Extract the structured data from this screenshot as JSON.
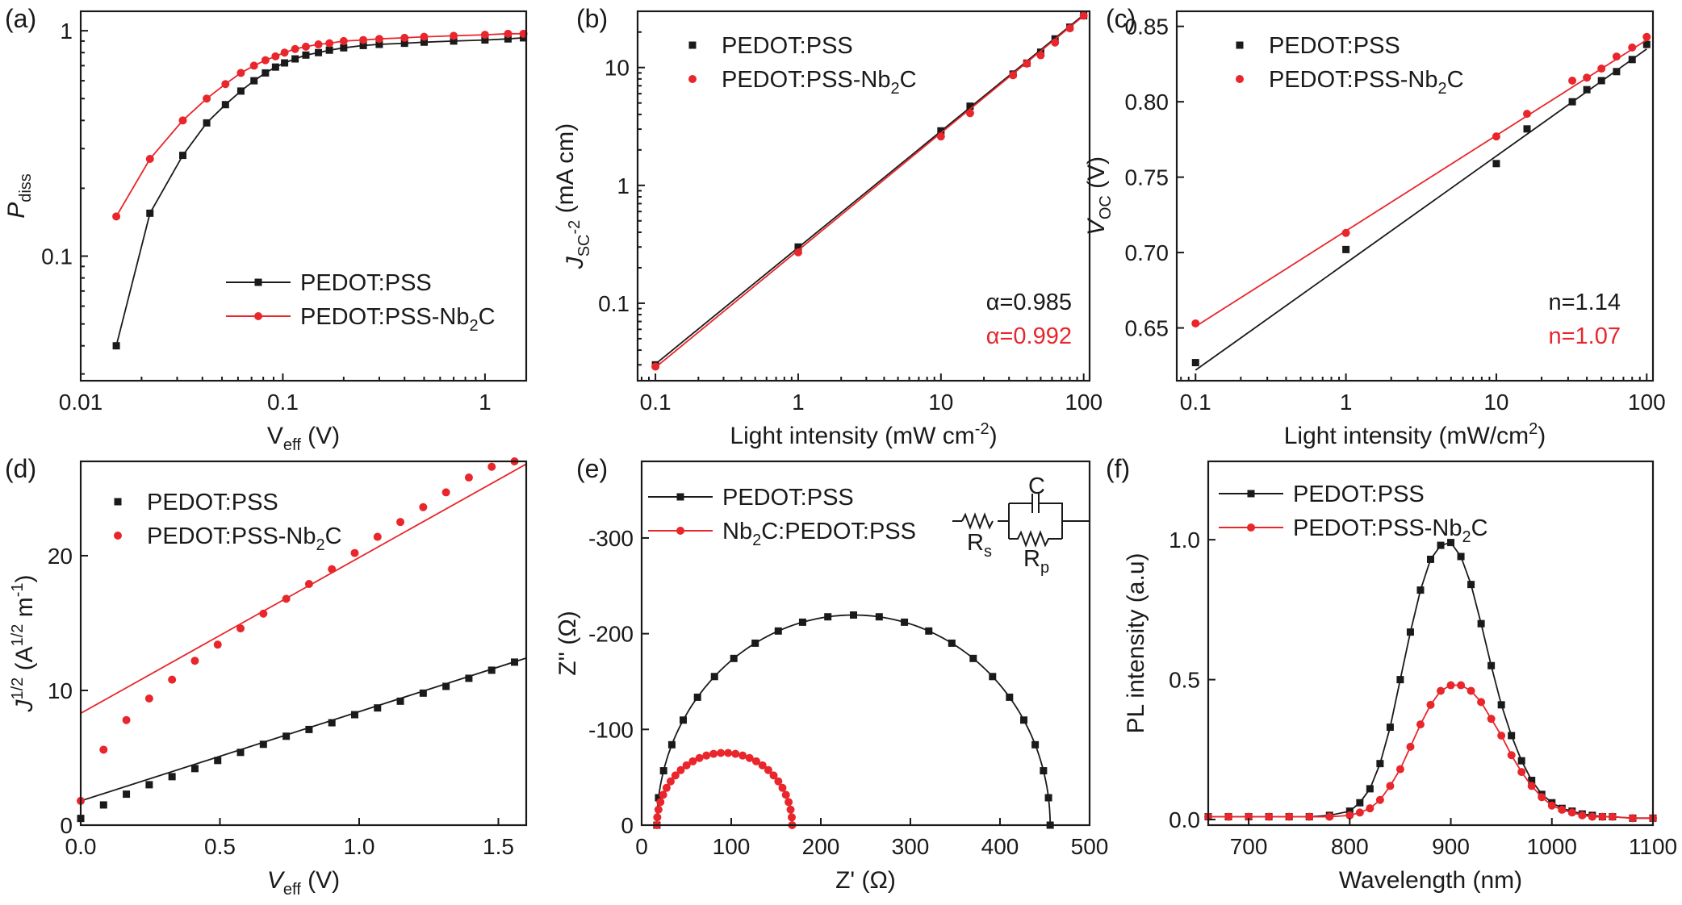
{
  "colors": {
    "black_series": "#1a1a1a",
    "red_series": "#e8262b"
  },
  "chart_data": [
    {
      "id": "a",
      "type": "line",
      "panel_label": "(a)",
      "xscale": "log",
      "yscale": "log",
      "xlim": [
        0.01,
        1.6
      ],
      "ylim": [
        0.028,
        1.22
      ],
      "xticks": [
        0.01,
        0.1,
        1
      ],
      "xtick_labels": [
        "0.01",
        "0.1",
        "1"
      ],
      "yticks": [
        0.1,
        1
      ],
      "ytick_labels": [
        "0.1",
        "1"
      ],
      "xlabel": {
        "main": "V",
        "sub": "eff",
        "tail": " (V)"
      },
      "ylabel": {
        "main": "P",
        "sub": "diss",
        "tail": ""
      },
      "legend": {
        "position": "lower-right",
        "markers": "line+marker"
      },
      "series": [
        {
          "name": "PEDOT:PSS",
          "color": "#1a1a1a",
          "marker": "square",
          "x": [
            0.015,
            0.022,
            0.032,
            0.042,
            0.052,
            0.062,
            0.072,
            0.082,
            0.092,
            0.102,
            0.115,
            0.13,
            0.15,
            0.17,
            0.2,
            0.25,
            0.3,
            0.4,
            0.5,
            0.7,
            1.0,
            1.3,
            1.55
          ],
          "y": [
            0.04,
            0.155,
            0.28,
            0.39,
            0.47,
            0.54,
            0.6,
            0.65,
            0.69,
            0.72,
            0.75,
            0.78,
            0.8,
            0.82,
            0.84,
            0.86,
            0.87,
            0.88,
            0.89,
            0.9,
            0.91,
            0.92,
            0.93
          ]
        },
        {
          "name": "PEDOT:PSS-Nb₂C",
          "color": "#e8262b",
          "marker": "circle",
          "x": [
            0.015,
            0.022,
            0.032,
            0.042,
            0.052,
            0.062,
            0.072,
            0.082,
            0.092,
            0.102,
            0.115,
            0.13,
            0.15,
            0.17,
            0.2,
            0.25,
            0.3,
            0.4,
            0.5,
            0.7,
            1.0,
            1.3,
            1.55
          ],
          "y": [
            0.15,
            0.27,
            0.4,
            0.5,
            0.58,
            0.65,
            0.7,
            0.74,
            0.77,
            0.8,
            0.83,
            0.85,
            0.87,
            0.88,
            0.9,
            0.91,
            0.92,
            0.93,
            0.94,
            0.95,
            0.96,
            0.97,
            0.97
          ]
        }
      ]
    },
    {
      "id": "b",
      "type": "scatter",
      "panel_label": "(b)",
      "xscale": "log",
      "yscale": "log",
      "xlim": [
        0.075,
        110
      ],
      "ylim": [
        0.022,
        30
      ],
      "xticks": [
        0.1,
        1,
        10,
        100
      ],
      "xtick_labels": [
        "0.1",
        "1",
        "10",
        "100"
      ],
      "yticks": [
        0.1,
        1,
        10
      ],
      "ytick_labels": [
        "0.1",
        "1",
        "10"
      ],
      "xlabel": {
        "main": "Light intensity (mW cm",
        "sup": "-2",
        "tail": ")"
      },
      "ylabel": {
        "main": "J",
        "sub": "SC",
        "tail": " (mA cm",
        "sup": "-2",
        "tail2": ")"
      },
      "legend": {
        "position": "top-left",
        "markers": "marker"
      },
      "annotations": [
        {
          "text": "α=0.985",
          "color": "#1a1a1a"
        },
        {
          "text": "α=0.992",
          "color": "#e8262b"
        }
      ],
      "series": [
        {
          "name": "PEDOT:PSS",
          "color": "#1a1a1a",
          "marker": "square",
          "x": [
            0.1,
            1,
            10,
            16,
            32,
            40,
            50,
            63,
            80,
            100
          ],
          "y": [
            0.03,
            0.3,
            2.9,
            4.7,
            8.8,
            10.9,
            13.5,
            17.5,
            22,
            27.5
          ],
          "fit": {
            "x": [
              0.1,
              100
            ],
            "y": [
              0.0305,
              28
            ]
          }
        },
        {
          "name": "PEDOT:PSS-Nb₂C",
          "color": "#e8262b",
          "marker": "circle",
          "x": [
            0.1,
            1,
            10,
            16,
            32,
            40,
            50,
            63,
            80,
            100
          ],
          "y": [
            0.029,
            0.27,
            2.6,
            4.1,
            8.6,
            10.8,
            12.7,
            16.3,
            21.5,
            27.5
          ],
          "fit": {
            "x": [
              0.1,
              100
            ],
            "y": [
              0.0285,
              27.5
            ]
          }
        }
      ]
    },
    {
      "id": "c",
      "type": "scatter",
      "panel_label": "(c)",
      "xscale": "log",
      "yscale": "linear",
      "xlim": [
        0.075,
        110
      ],
      "ylim": [
        0.615,
        0.86
      ],
      "xticks": [
        0.1,
        1,
        10,
        100
      ],
      "xtick_labels": [
        "0.1",
        "1",
        "10",
        "100"
      ],
      "yticks": [
        0.65,
        0.7,
        0.75,
        0.8,
        0.85
      ],
      "ytick_labels": [
        "0.65",
        "0.70",
        "0.75",
        "0.80",
        "0.85"
      ],
      "xlabel": {
        "main": "Light intensity (mW/cm",
        "sup": "2",
        "tail": ")"
      },
      "ylabel": {
        "main": "V",
        "sub": "OC",
        "tail": " (V)"
      },
      "legend": {
        "position": "top-left",
        "markers": "marker"
      },
      "annotations": [
        {
          "text": "n=1.14",
          "color": "#1a1a1a"
        },
        {
          "text": "n=1.07",
          "color": "#e8262b"
        }
      ],
      "series": [
        {
          "name": "PEDOT:PSS",
          "color": "#1a1a1a",
          "marker": "square",
          "x": [
            0.1,
            1,
            10,
            16,
            32,
            40,
            50,
            63,
            80,
            100
          ],
          "y": [
            0.627,
            0.702,
            0.759,
            0.782,
            0.8,
            0.808,
            0.814,
            0.82,
            0.828,
            0.838
          ],
          "fit": {
            "x": [
              0.1,
              100
            ],
            "y": [
              0.622,
              0.835
            ]
          }
        },
        {
          "name": "PEDOT:PSS-Nb₂C",
          "color": "#e8262b",
          "marker": "circle",
          "x": [
            0.1,
            1,
            10,
            16,
            32,
            40,
            50,
            63,
            80,
            100
          ],
          "y": [
            0.653,
            0.713,
            0.777,
            0.792,
            0.814,
            0.816,
            0.822,
            0.83,
            0.836,
            0.843
          ],
          "fit": {
            "x": [
              0.1,
              100
            ],
            "y": [
              0.651,
              0.841
            ]
          }
        }
      ]
    },
    {
      "id": "d",
      "type": "scatter",
      "panel_label": "(d)",
      "xscale": "linear",
      "yscale": "linear",
      "xlim": [
        0,
        1.6
      ],
      "ylim": [
        0,
        27
      ],
      "xticks": [
        0,
        0.5,
        1,
        1.5
      ],
      "xtick_labels": [
        "0.0",
        "0.5",
        "1.0",
        "1.5"
      ],
      "yticks": [
        0,
        10,
        20
      ],
      "ytick_labels": [
        "0",
        "10",
        "20"
      ],
      "xlabel": {
        "main": "V",
        "sub": "eff",
        "tail": " (V)"
      },
      "ylabel": {
        "main": "J",
        "sup": "1/2",
        "tail": " (A",
        "sup2": "1/2",
        "tail2": " m",
        "sup3": "-1",
        "tail3": ")"
      },
      "legend": {
        "position": "top-left",
        "markers": "marker"
      },
      "series": [
        {
          "name": "PEDOT:PSS",
          "color": "#1a1a1a",
          "marker": "square",
          "x": [
            0.0,
            0.082,
            0.164,
            0.246,
            0.328,
            0.41,
            0.492,
            0.574,
            0.656,
            0.738,
            0.82,
            0.902,
            0.984,
            1.066,
            1.148,
            1.23,
            1.312,
            1.394,
            1.476,
            1.558
          ],
          "y": [
            0.5,
            1.5,
            2.3,
            3.0,
            3.6,
            4.2,
            4.8,
            5.4,
            6.0,
            6.6,
            7.1,
            7.6,
            8.2,
            8.7,
            9.2,
            9.8,
            10.3,
            10.9,
            11.5,
            12.1
          ],
          "fit": {
            "x": [
              0,
              1.6
            ],
            "y": [
              1.8,
              12.4
            ]
          }
        },
        {
          "name": "PEDOT:PSS-Nb₂C",
          "color": "#e8262b",
          "marker": "circle",
          "x": [
            0.0,
            0.082,
            0.164,
            0.246,
            0.328,
            0.41,
            0.492,
            0.574,
            0.656,
            0.738,
            0.82,
            0.902,
            0.984,
            1.066,
            1.148,
            1.23,
            1.312,
            1.394,
            1.476,
            1.558
          ],
          "y": [
            1.8,
            5.6,
            7.8,
            9.4,
            10.8,
            12.2,
            13.4,
            14.6,
            15.7,
            16.8,
            17.9,
            19.0,
            20.2,
            21.4,
            22.5,
            23.6,
            24.7,
            25.8,
            26.6,
            27.0
          ],
          "fit": {
            "x": [
              0,
              1.6
            ],
            "y": [
              8.3,
              26.8
            ]
          }
        }
      ]
    },
    {
      "id": "e",
      "type": "line",
      "panel_label": "(e)",
      "xscale": "linear",
      "yscale": "linear",
      "y_inverted": true,
      "xlim": [
        0,
        500
      ],
      "ylim": [
        0,
        -380
      ],
      "xticks": [
        0,
        100,
        200,
        300,
        400,
        500
      ],
      "xtick_labels": [
        "0",
        "100",
        "200",
        "300",
        "400",
        "500"
      ],
      "yticks": [
        0,
        -100,
        -200,
        -300
      ],
      "ytick_labels": [
        "0",
        "-100",
        "-200",
        "-300"
      ],
      "xlabel": {
        "main": "Z' (Ω)"
      },
      "ylabel": {
        "main": "Z'' (Ω)"
      },
      "legend": {
        "position": "top-left",
        "markers": "line+marker"
      },
      "inset_circuit": {
        "labels": [
          "C",
          "R",
          "s",
          "R",
          "p"
        ]
      },
      "series": [
        {
          "name": "PEDOT:PSS",
          "color": "#1a1a1a",
          "marker": "square",
          "semicircle": {
            "center_x": 236.5,
            "radius": 219.5,
            "n_points": 25
          }
        },
        {
          "name": "Nb₂C:PEDOT:PSS",
          "color": "#e8262b",
          "marker": "circle",
          "semicircle": {
            "center_x": 92.5,
            "radius": 75.5,
            "n_points": 30
          }
        }
      ]
    },
    {
      "id": "f",
      "type": "line",
      "panel_label": "(f)",
      "xscale": "linear",
      "yscale": "linear",
      "xlim": [
        660,
        1100
      ],
      "ylim": [
        -0.02,
        1.28
      ],
      "xticks": [
        700,
        800,
        900,
        1000,
        1100
      ],
      "xtick_labels": [
        "700",
        "800",
        "900",
        "1000",
        "1100"
      ],
      "yticks": [
        0,
        0.5,
        1
      ],
      "ytick_labels": [
        "0.0",
        "0.5",
        "1.0"
      ],
      "xlabel": {
        "main": "Wavelength (nm)"
      },
      "ylabel": {
        "main": "PL intensity (a.u)"
      },
      "legend": {
        "position": "top-left",
        "markers": "line+marker"
      },
      "series": [
        {
          "name": "PEDOT:PSS",
          "color": "#1a1a1a",
          "marker": "square",
          "x": [
            660,
            680,
            700,
            720,
            740,
            760,
            780,
            800,
            810,
            820,
            830,
            840,
            850,
            860,
            870,
            880,
            890,
            900,
            910,
            920,
            930,
            940,
            950,
            960,
            970,
            980,
            990,
            1000,
            1010,
            1020,
            1030,
            1040,
            1050,
            1060,
            1080,
            1100
          ],
          "y": [
            0.01,
            0.01,
            0.01,
            0.01,
            0.01,
            0.01,
            0.015,
            0.03,
            0.06,
            0.11,
            0.2,
            0.33,
            0.5,
            0.67,
            0.82,
            0.93,
            0.98,
            0.99,
            0.94,
            0.84,
            0.7,
            0.55,
            0.41,
            0.3,
            0.21,
            0.14,
            0.09,
            0.06,
            0.04,
            0.03,
            0.02,
            0.015,
            0.01,
            0.01,
            0.005,
            0.005
          ]
        },
        {
          "name": "PEDOT:PSS-Nb₂C",
          "color": "#e8262b",
          "marker": "circle",
          "x": [
            660,
            680,
            700,
            720,
            740,
            760,
            780,
            800,
            810,
            820,
            830,
            840,
            850,
            860,
            870,
            880,
            890,
            900,
            910,
            920,
            930,
            940,
            950,
            960,
            970,
            980,
            990,
            1000,
            1010,
            1020,
            1030,
            1040,
            1050,
            1060,
            1080,
            1100
          ],
          "y": [
            0.01,
            0.01,
            0.01,
            0.01,
            0.01,
            0.01,
            0.01,
            0.015,
            0.025,
            0.04,
            0.07,
            0.12,
            0.18,
            0.26,
            0.34,
            0.41,
            0.46,
            0.48,
            0.48,
            0.46,
            0.42,
            0.36,
            0.3,
            0.23,
            0.17,
            0.12,
            0.08,
            0.05,
            0.035,
            0.025,
            0.015,
            0.01,
            0.01,
            0.01,
            0.005,
            0.005
          ]
        }
      ]
    }
  ]
}
